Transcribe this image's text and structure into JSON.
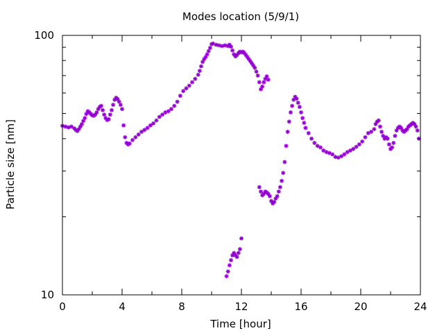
{
  "chart_data": {
    "type": "scatter",
    "title": "Modes location (5/9/1)",
    "xlabel": "Time [hour]",
    "ylabel": "Particle size [nm]",
    "xlim": [
      0,
      24
    ],
    "ylim": [
      10,
      100
    ],
    "yscale": "log",
    "xticks": [
      0,
      4,
      8,
      12,
      16,
      20,
      24
    ],
    "xtick_labels": [
      "0",
      "4",
      "8",
      "12",
      "16",
      "20",
      "24"
    ],
    "yticks": [
      10,
      100
    ],
    "ytick_labels": [
      "10",
      "100"
    ],
    "grid": false,
    "marker": "asterisk",
    "color": "#9400d3",
    "series": [
      {
        "points": [
          [
            0.0,
            44.8
          ],
          [
            0.2,
            44.5
          ],
          [
            0.4,
            44.2
          ],
          [
            0.6,
            44.5
          ],
          [
            0.8,
            43.8
          ],
          [
            0.9,
            43.2
          ],
          [
            1.0,
            42.8
          ],
          [
            1.1,
            43.5
          ],
          [
            1.2,
            44.5
          ],
          [
            1.3,
            45.5
          ],
          [
            1.4,
            46.8
          ],
          [
            1.5,
            48.0
          ],
          [
            1.6,
            49.8
          ],
          [
            1.7,
            51.0
          ],
          [
            1.8,
            50.5
          ],
          [
            1.9,
            49.8
          ],
          [
            2.0,
            49.2
          ],
          [
            2.1,
            49.0
          ],
          [
            2.2,
            49.5
          ],
          [
            2.3,
            50.5
          ],
          [
            2.4,
            52.0
          ],
          [
            2.5,
            53.0
          ],
          [
            2.6,
            53.5
          ],
          [
            2.7,
            51.5
          ],
          [
            2.8,
            49.5
          ],
          [
            2.9,
            48.0
          ],
          [
            3.0,
            47.2
          ],
          [
            3.1,
            47.5
          ],
          [
            3.2,
            49.5
          ],
          [
            3.3,
            51.5
          ],
          [
            3.4,
            54.0
          ],
          [
            3.5,
            56.5
          ],
          [
            3.6,
            57.5
          ],
          [
            3.7,
            56.8
          ],
          [
            3.8,
            55.5
          ],
          [
            3.9,
            54.0
          ],
          [
            4.0,
            52.0
          ],
          [
            4.1,
            45.0
          ],
          [
            4.2,
            40.5
          ],
          [
            4.3,
            38.5
          ],
          [
            4.4,
            38.0
          ],
          [
            4.5,
            38.3
          ],
          [
            4.7,
            39.5
          ],
          [
            4.9,
            40.5
          ],
          [
            5.1,
            41.5
          ],
          [
            5.3,
            42.5
          ],
          [
            5.5,
            43.2
          ],
          [
            5.7,
            44.0
          ],
          [
            5.9,
            45.0
          ],
          [
            6.1,
            45.8
          ],
          [
            6.3,
            47.0
          ],
          [
            6.5,
            48.5
          ],
          [
            6.7,
            49.5
          ],
          [
            6.9,
            50.5
          ],
          [
            7.1,
            51.0
          ],
          [
            7.3,
            52.0
          ],
          [
            7.5,
            53.5
          ],
          [
            7.7,
            55.5
          ],
          [
            7.9,
            58.5
          ],
          [
            8.1,
            61.0
          ],
          [
            8.3,
            62.5
          ],
          [
            8.5,
            64.0
          ],
          [
            8.7,
            66.0
          ],
          [
            8.9,
            68.0
          ],
          [
            9.1,
            70.5
          ],
          [
            9.2,
            73.0
          ],
          [
            9.3,
            76.0
          ],
          [
            9.4,
            79.0
          ],
          [
            9.5,
            81.0
          ],
          [
            9.6,
            82.5
          ],
          [
            9.7,
            84.5
          ],
          [
            9.8,
            87.0
          ],
          [
            9.9,
            89.5
          ],
          [
            10.0,
            92.5
          ],
          [
            10.1,
            93.0
          ],
          [
            10.3,
            92.0
          ],
          [
            10.5,
            91.5
          ],
          [
            10.7,
            91.0
          ],
          [
            10.9,
            91.5
          ],
          [
            11.1,
            91.0
          ],
          [
            11.2,
            92.0
          ],
          [
            11.3,
            90.5
          ],
          [
            11.4,
            87.5
          ],
          [
            11.5,
            84.5
          ],
          [
            11.6,
            83.0
          ],
          [
            11.7,
            84.0
          ],
          [
            11.8,
            85.5
          ],
          [
            11.9,
            86.5
          ],
          [
            12.0,
            86.0
          ],
          [
            12.1,
            86.5
          ],
          [
            12.2,
            85.5
          ],
          [
            12.3,
            84.0
          ],
          [
            12.4,
            82.5
          ],
          [
            12.5,
            81.0
          ],
          [
            12.6,
            79.5
          ],
          [
            12.7,
            78.0
          ],
          [
            12.8,
            76.5
          ],
          [
            12.9,
            75.0
          ],
          [
            13.0,
            72.5
          ],
          [
            13.1,
            70.0
          ],
          [
            13.2,
            66.0
          ],
          [
            13.3,
            62.0
          ],
          [
            13.4,
            63.5
          ],
          [
            13.5,
            66.0
          ],
          [
            13.6,
            68.0
          ],
          [
            13.7,
            69.5
          ],
          [
            13.8,
            67.5
          ],
          [
            11.0,
            11.8
          ],
          [
            11.1,
            12.3
          ],
          [
            11.2,
            13.0
          ],
          [
            11.3,
            13.6
          ],
          [
            11.4,
            14.2
          ],
          [
            11.5,
            14.5
          ],
          [
            11.6,
            14.2
          ],
          [
            11.7,
            14.0
          ],
          [
            11.8,
            14.5
          ],
          [
            11.9,
            15.0
          ],
          [
            12.0,
            16.5
          ],
          [
            13.2,
            26.0
          ],
          [
            13.3,
            25.0
          ],
          [
            13.4,
            24.2
          ],
          [
            13.5,
            24.5
          ],
          [
            13.6,
            25.0
          ],
          [
            13.7,
            24.8
          ],
          [
            13.8,
            24.5
          ],
          [
            13.9,
            24.0
          ],
          [
            14.0,
            23.0
          ],
          [
            14.1,
            22.5
          ],
          [
            14.2,
            22.8
          ],
          [
            14.3,
            23.5
          ],
          [
            14.4,
            24.0
          ],
          [
            14.5,
            25.0
          ],
          [
            14.6,
            26.0
          ],
          [
            14.7,
            27.5
          ],
          [
            14.8,
            29.5
          ],
          [
            14.9,
            32.5
          ],
          [
            15.0,
            37.5
          ],
          [
            15.1,
            42.5
          ],
          [
            15.2,
            46.5
          ],
          [
            15.3,
            50.5
          ],
          [
            15.4,
            53.5
          ],
          [
            15.5,
            56.5
          ],
          [
            15.6,
            58.0
          ],
          [
            15.7,
            57.0
          ],
          [
            15.8,
            55.0
          ],
          [
            15.9,
            53.0
          ],
          [
            16.0,
            50.5
          ],
          [
            16.1,
            48.0
          ],
          [
            16.2,
            46.0
          ],
          [
            16.3,
            44.0
          ],
          [
            16.5,
            42.0
          ],
          [
            16.7,
            40.0
          ],
          [
            16.9,
            38.5
          ],
          [
            17.1,
            37.5
          ],
          [
            17.3,
            37.0
          ],
          [
            17.5,
            36.0
          ],
          [
            17.7,
            35.5
          ],
          [
            17.9,
            35.2
          ],
          [
            18.1,
            34.8
          ],
          [
            18.3,
            34.0
          ],
          [
            18.5,
            33.8
          ],
          [
            18.7,
            34.2
          ],
          [
            18.9,
            34.8
          ],
          [
            19.1,
            35.5
          ],
          [
            19.3,
            36.0
          ],
          [
            19.5,
            36.5
          ],
          [
            19.7,
            37.2
          ],
          [
            19.9,
            38.0
          ],
          [
            20.1,
            39.0
          ],
          [
            20.3,
            40.5
          ],
          [
            20.5,
            42.0
          ],
          [
            20.7,
            42.5
          ],
          [
            20.9,
            43.5
          ],
          [
            21.0,
            45.5
          ],
          [
            21.1,
            46.5
          ],
          [
            21.2,
            47.0
          ],
          [
            21.3,
            44.5
          ],
          [
            21.4,
            42.5
          ],
          [
            21.5,
            41.0
          ],
          [
            21.6,
            40.0
          ],
          [
            21.7,
            40.5
          ],
          [
            21.8,
            40.0
          ],
          [
            21.9,
            38.0
          ],
          [
            22.0,
            36.5
          ],
          [
            22.1,
            37.0
          ],
          [
            22.2,
            38.5
          ],
          [
            22.3,
            41.0
          ],
          [
            22.4,
            43.0
          ],
          [
            22.5,
            44.0
          ],
          [
            22.6,
            44.5
          ],
          [
            22.7,
            44.0
          ],
          [
            22.8,
            43.0
          ],
          [
            22.9,
            42.5
          ],
          [
            23.0,
            43.0
          ],
          [
            23.1,
            43.5
          ],
          [
            23.2,
            44.5
          ],
          [
            23.3,
            45.0
          ],
          [
            23.4,
            45.5
          ],
          [
            23.5,
            46.0
          ],
          [
            23.6,
            45.5
          ],
          [
            23.7,
            44.5
          ],
          [
            23.8,
            43.0
          ],
          [
            23.9,
            40.0
          ]
        ]
      }
    ]
  }
}
